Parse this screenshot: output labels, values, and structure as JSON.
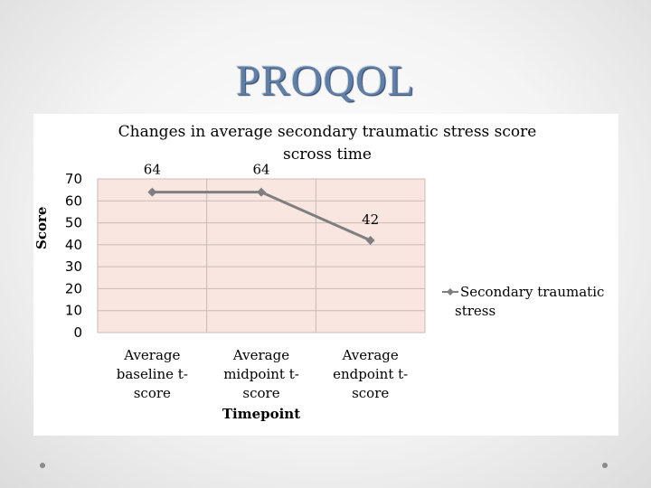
{
  "slide": {
    "title": "PROQOL"
  },
  "chart_data": {
    "type": "line",
    "title": "Changes in average secondary traumatic stress score scross time",
    "xlabel": "Timepoint",
    "ylabel": "Score",
    "ylim": [
      0,
      70
    ],
    "yticks": [
      0,
      10,
      20,
      30,
      40,
      50,
      60,
      70
    ],
    "categories": [
      "Average baseline t-score",
      "Average midpoint t-score",
      "Average endpoint t-score"
    ],
    "category_lines": [
      [
        "Average",
        "baseline t-",
        "score"
      ],
      [
        "Average",
        "midpoint t-",
        "score"
      ],
      [
        "Average",
        "endpoint t-",
        "score"
      ]
    ],
    "series": [
      {
        "name": "Secondary traumatic stress",
        "values": [
          64,
          64,
          42
        ],
        "color": "#7f7f7f",
        "marker": "diamond"
      }
    ],
    "data_labels": [
      "64",
      "64",
      "42"
    ],
    "legend": {
      "placement": "right",
      "lines": [
        "Secondary traumatic",
        "stress"
      ]
    },
    "plot_background": "#f9e6e1",
    "grid": true
  }
}
